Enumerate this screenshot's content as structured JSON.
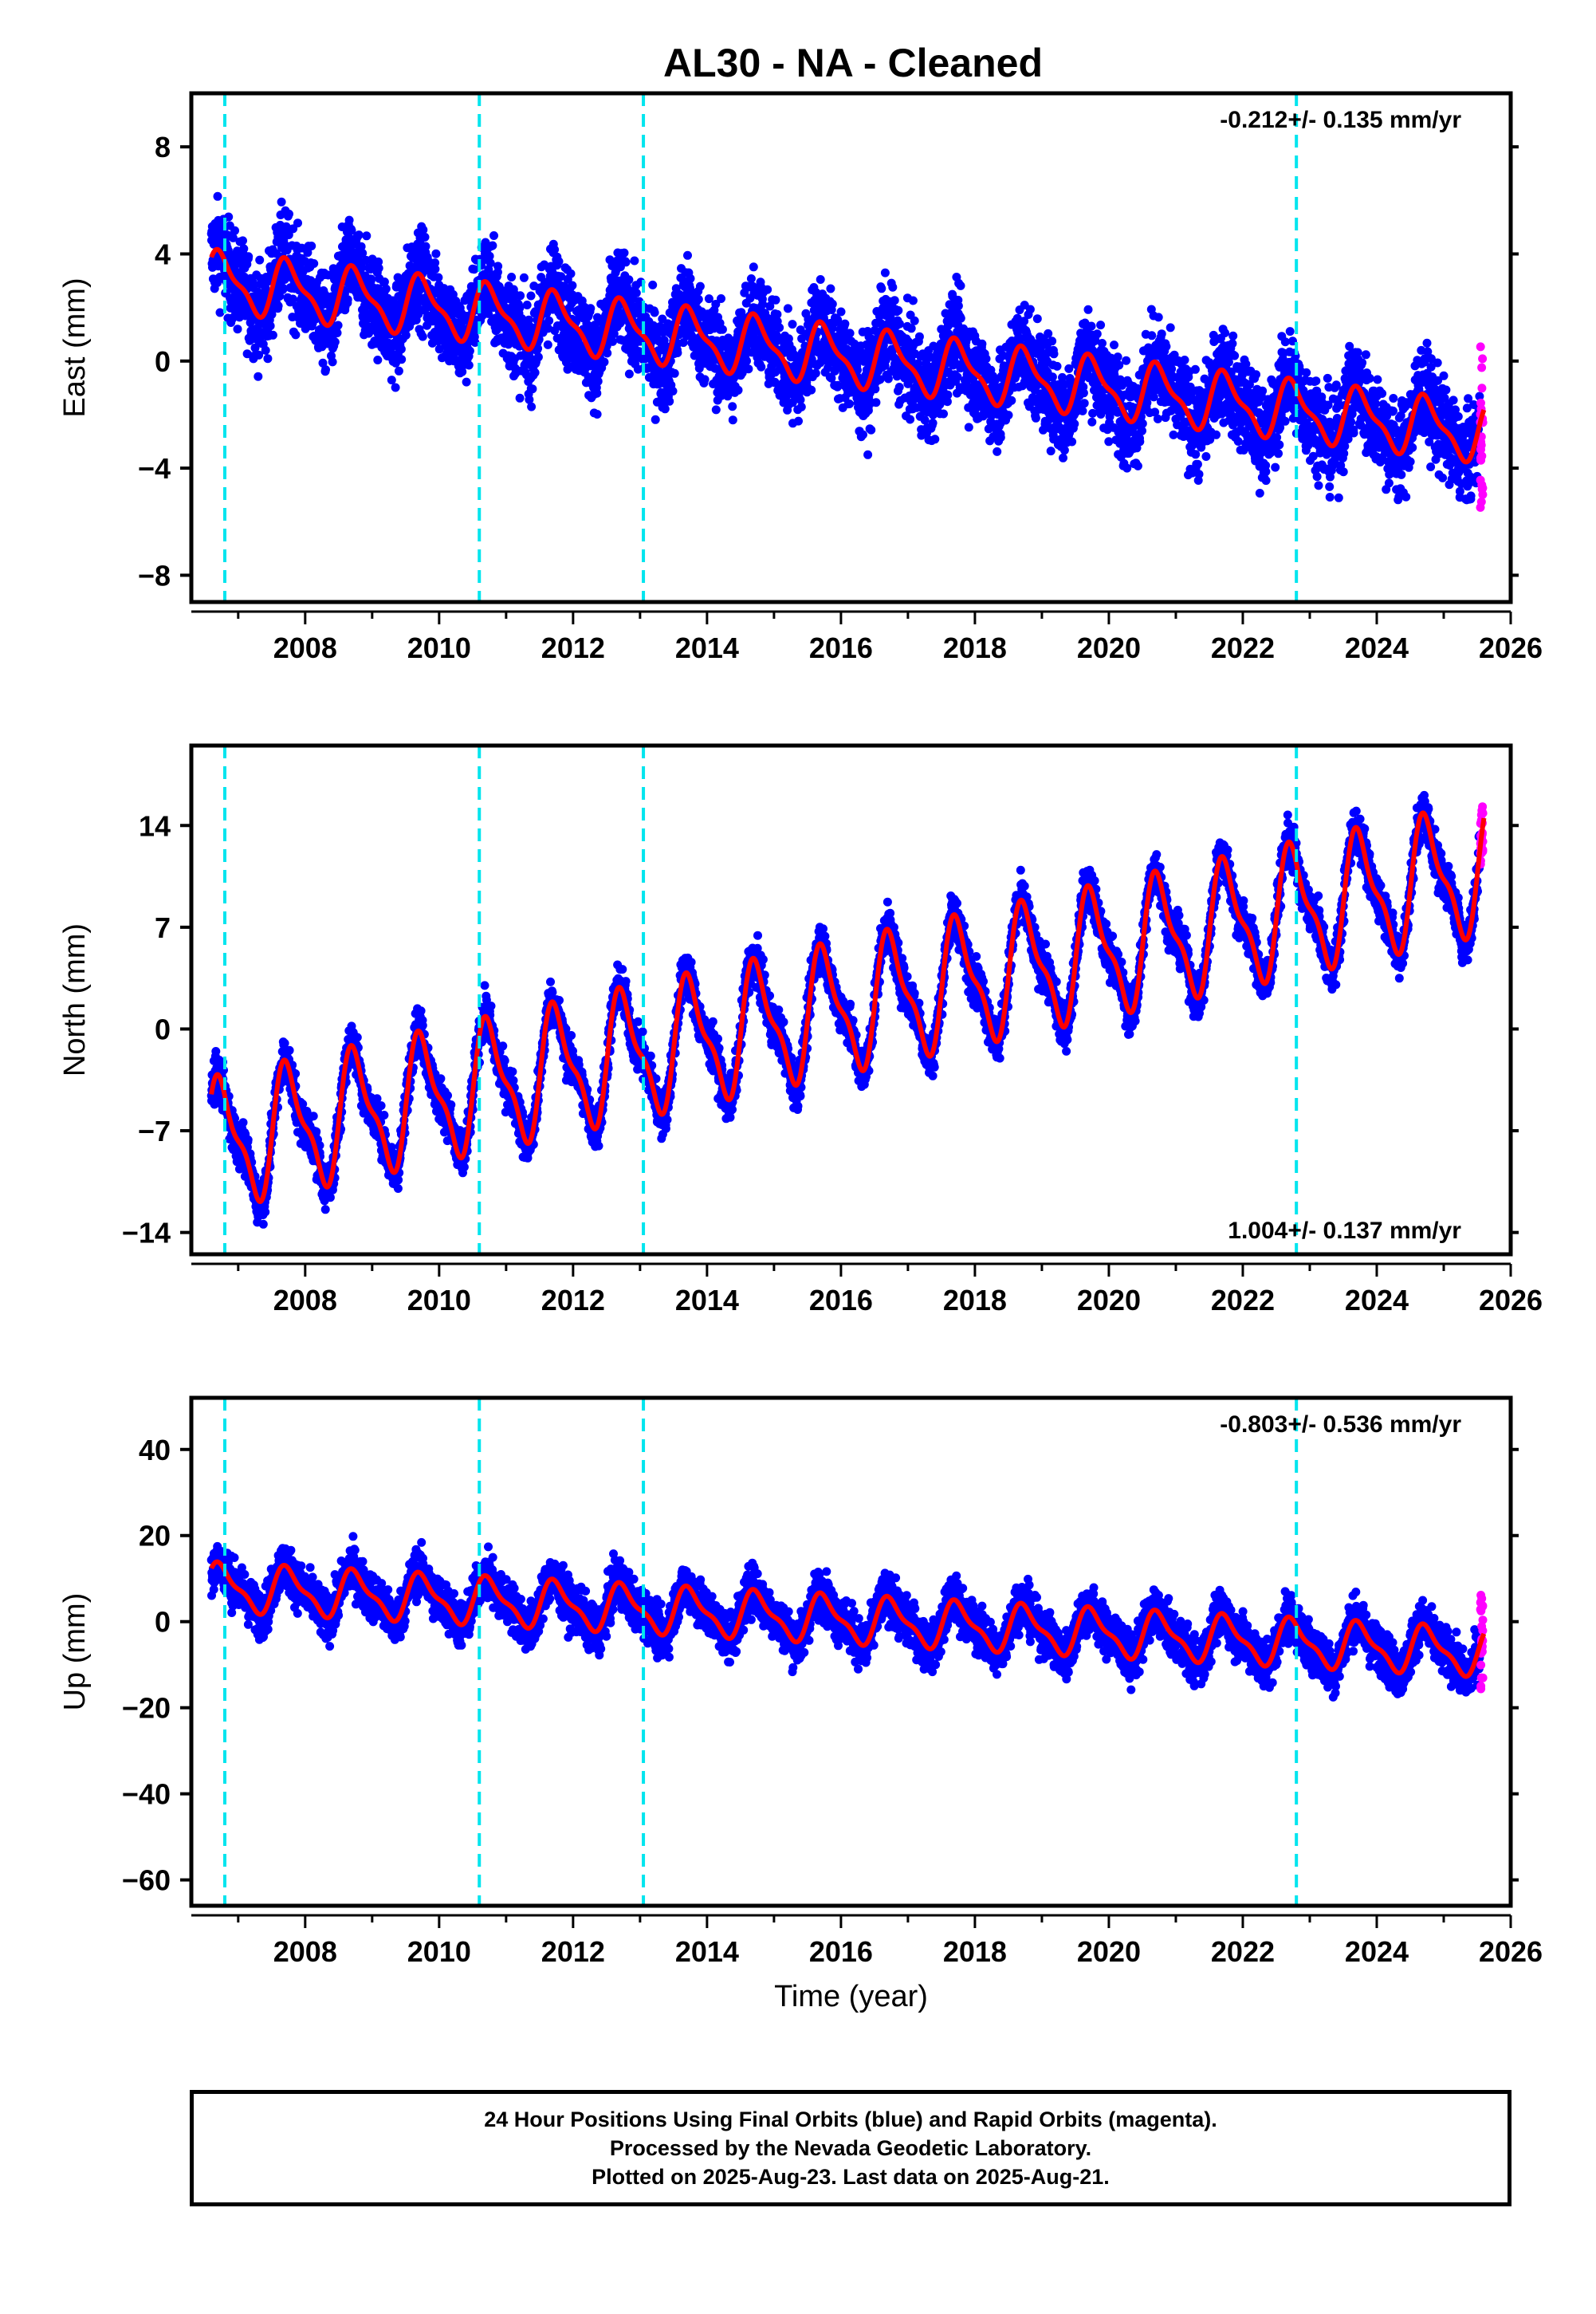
{
  "title": "AL30  - NA - Cleaned",
  "footer": {
    "line1": "24 Hour Positions Using Final Orbits (blue) and Rapid Orbits (magenta).",
    "line2": "Processed by the Nevada Geodetic Laboratory.",
    "line3": "Plotted on 2025-Aug-23. Last data on 2025-Aug-21."
  },
  "colors": {
    "final_orbits": "#0000ff",
    "rapid_orbits": "#ff00ff",
    "model": "#ff0000",
    "offsets": "#00e5ee"
  },
  "chart_data": [
    {
      "type": "scatter",
      "ylabel": "East (mm)",
      "xlim": [
        2006.3,
        2026.0
      ],
      "ylim": [
        -9.0,
        10.0
      ],
      "yticks": [
        -8,
        -4,
        0,
        4,
        8
      ],
      "ytick_labels": [
        "−8",
        "−4",
        "0",
        "4",
        "8"
      ],
      "xticks": [
        2008,
        2010,
        2012,
        2014,
        2016,
        2018,
        2020,
        2022,
        2024,
        2026
      ],
      "rate_label": "-0.212+/- 0.135 mm/yr",
      "rate_position": "top-right",
      "model": {
        "start": 2006.6,
        "end": 2025.6,
        "offset": 3.0,
        "trend": -0.3,
        "amplitude": 1.0,
        "noise": 1.6,
        "rapid_spread": 6.5
      },
      "offsets_x": [
        2006.8,
        2010.6,
        2013.05,
        2022.8
      ]
    },
    {
      "type": "scatter",
      "ylabel": "North (mm)",
      "xlim": [
        2006.3,
        2026.0
      ],
      "ylim": [
        -15.5,
        19.5
      ],
      "yticks": [
        -14,
        -7,
        0,
        7,
        14
      ],
      "ytick_labels": [
        "−14",
        "−7",
        "0",
        "7",
        "14"
      ],
      "xticks": [
        2008,
        2010,
        2012,
        2014,
        2016,
        2018,
        2020,
        2022,
        2024,
        2026
      ],
      "rate_label": "1.004+/- 0.137 mm/yr",
      "rate_position": "bottom-right",
      "model": {
        "start": 2006.6,
        "end": 2025.6,
        "offset": -8.0,
        "trend": 1.0,
        "amplitude": 4.0,
        "noise": 1.4,
        "rapid_spread": 3.5
      },
      "offsets_x": [
        2006.8,
        2010.6,
        2013.05,
        2022.8
      ]
    },
    {
      "type": "scatter",
      "ylabel": "Up (mm)",
      "xlabel": "Time (year)",
      "xlim": [
        2006.3,
        2026.0
      ],
      "ylim": [
        -66.0,
        52.0
      ],
      "yticks": [
        -60,
        -40,
        -20,
        0,
        20,
        40
      ],
      "ytick_labels": [
        "−60",
        "−40",
        "−20",
        "0",
        "20",
        "40"
      ],
      "xticks": [
        2008,
        2010,
        2012,
        2014,
        2016,
        2018,
        2020,
        2022,
        2024,
        2026
      ],
      "rate_label": "-0.803+/- 0.536 mm/yr",
      "rate_position": "top-right",
      "model": {
        "start": 2006.6,
        "end": 2025.6,
        "offset": 8.0,
        "trend": -0.8,
        "amplitude": 5.0,
        "noise": 5.0,
        "rapid_spread": 22.0
      },
      "offsets_x": [
        2006.8,
        2010.6,
        2013.05,
        2022.8
      ]
    }
  ]
}
